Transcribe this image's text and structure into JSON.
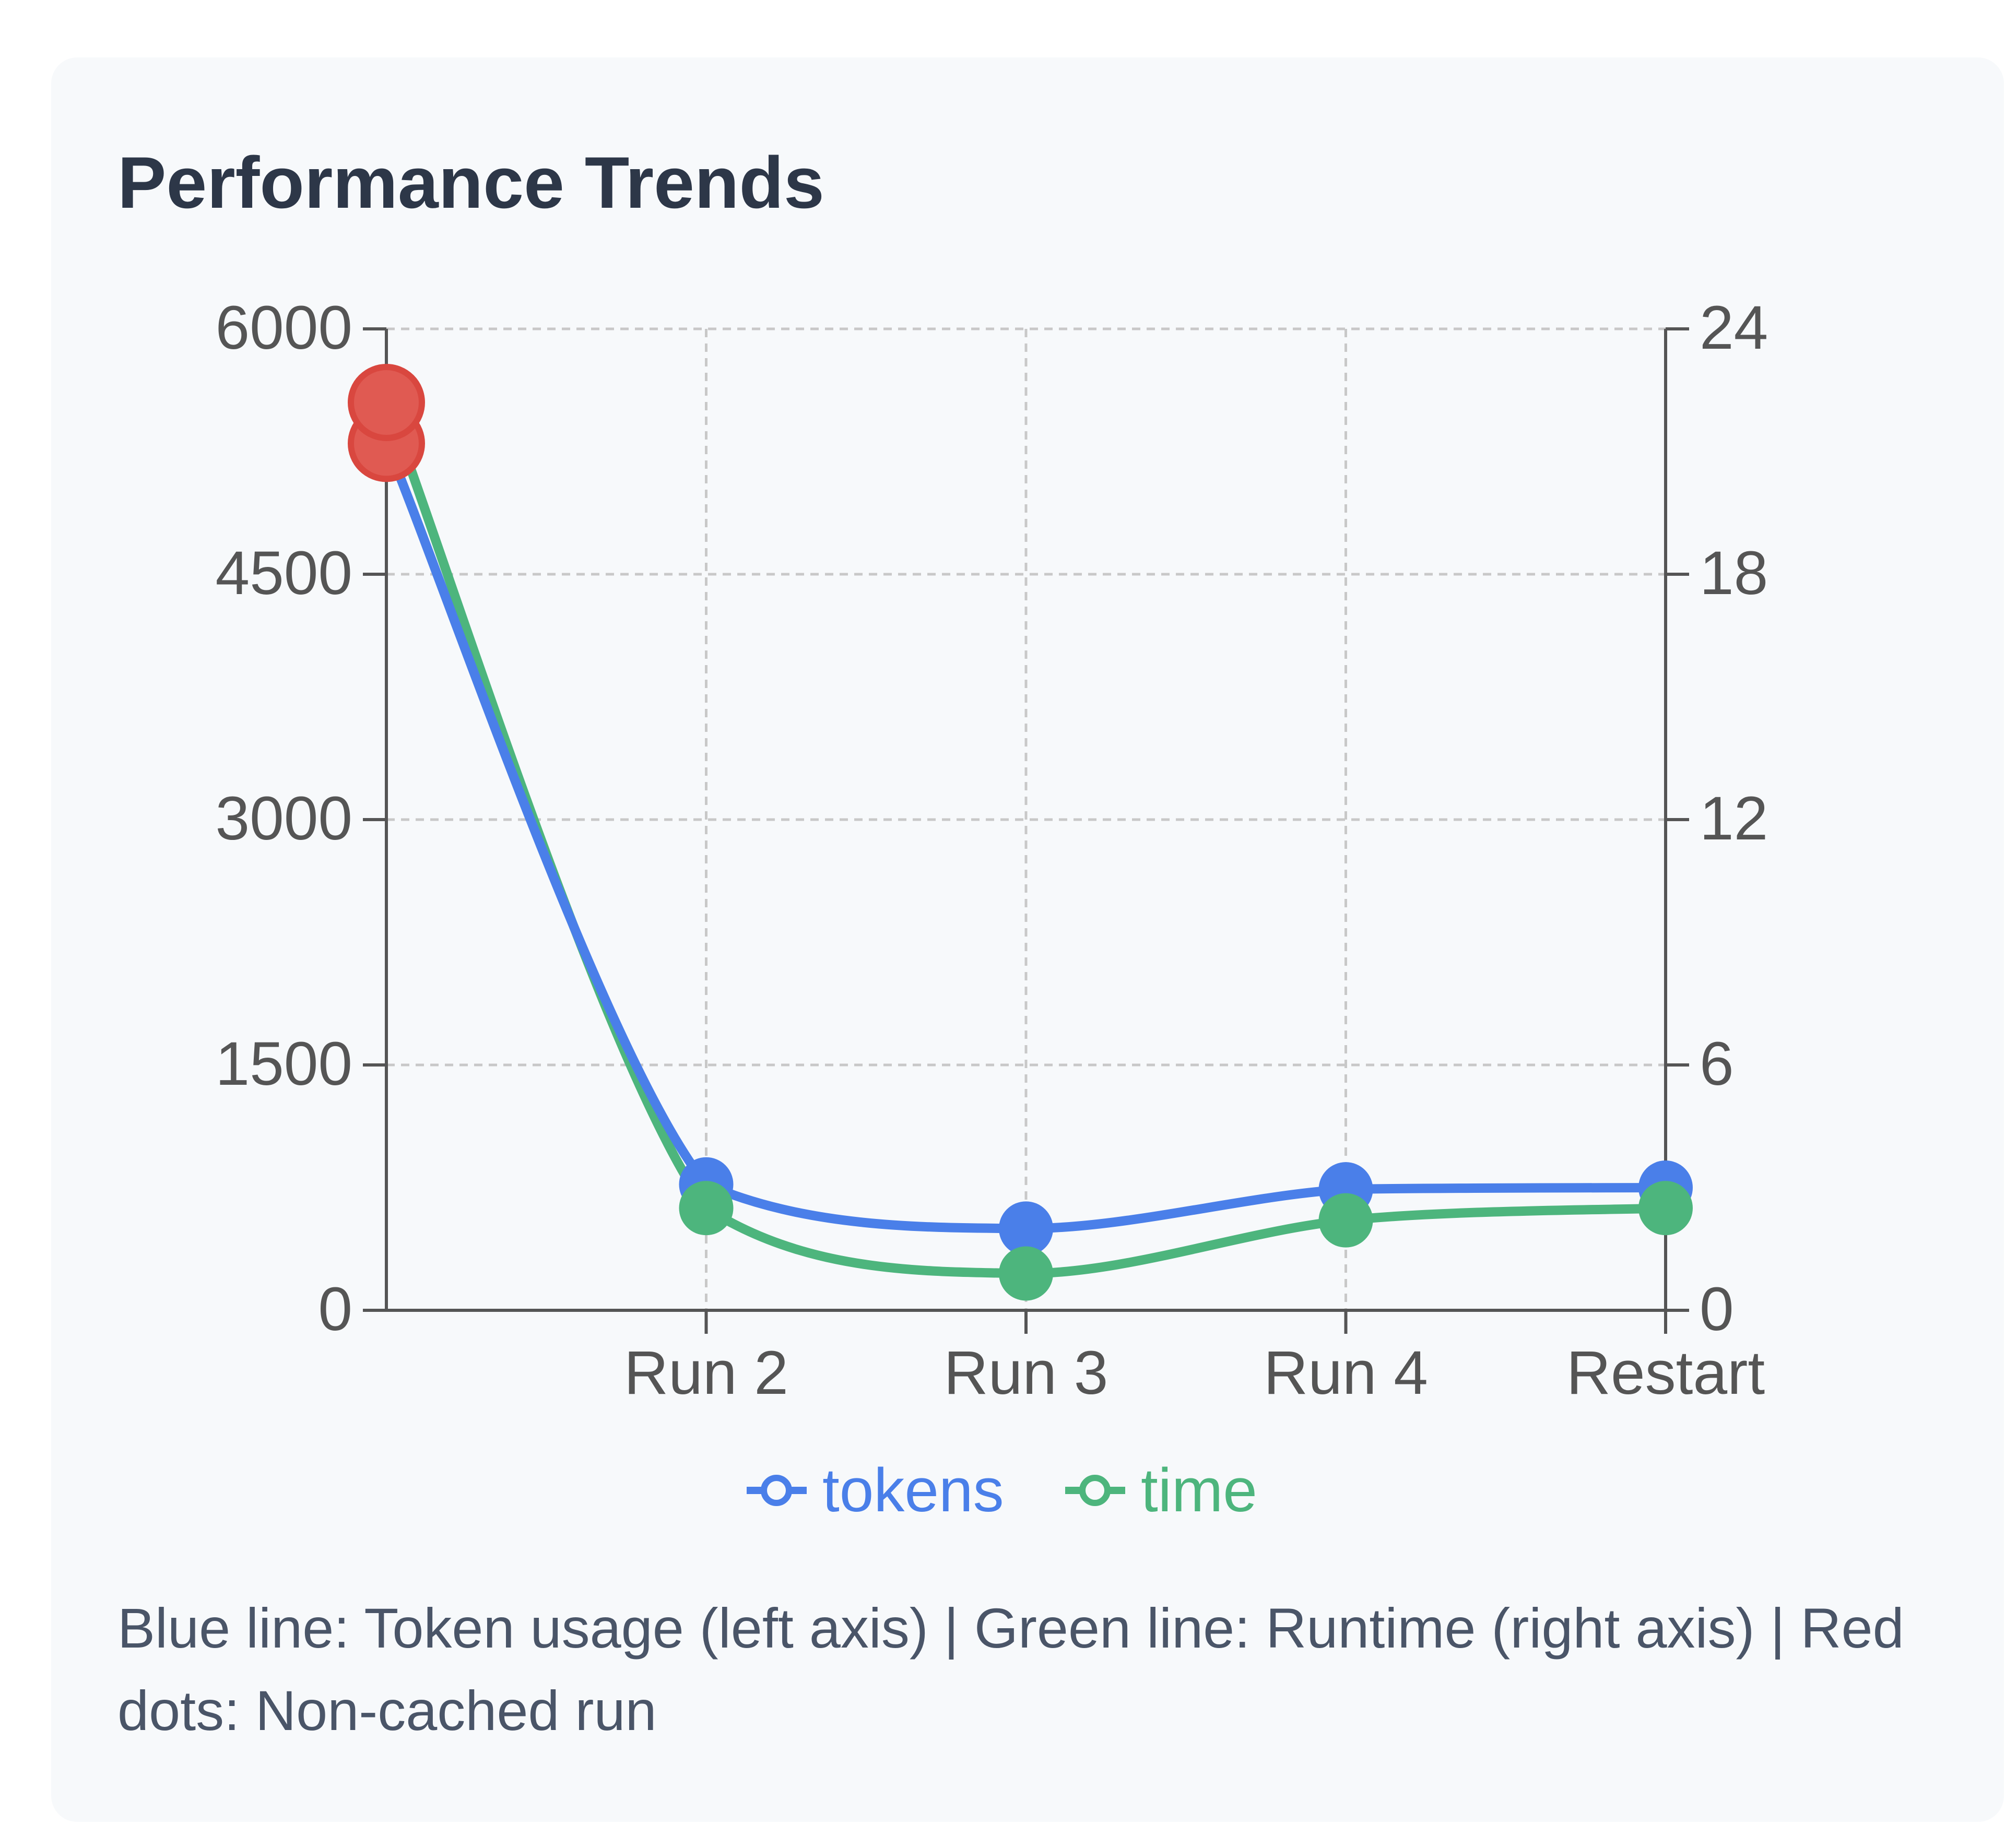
{
  "card": {
    "title": "Performance Trends",
    "caption": "Blue line: Token usage (left axis) | Green line: Runtime (right axis) | Red dots: Non-cached run"
  },
  "colors": {
    "tokens": "#4a7fe9",
    "time": "#4db57d",
    "highlight": "#d9473f",
    "axis": "#555555",
    "grid": "#c8c8c8",
    "tick_text": "#555555"
  },
  "chart_data": {
    "type": "line",
    "categories": [
      "",
      "Run 2",
      "Run 3",
      "Run 4",
      "Restart"
    ],
    "series": [
      {
        "name": "tokens",
        "axis": "left",
        "color": "#4a7fe9",
        "values": [
          5300,
          770,
          500,
          740,
          750
        ]
      },
      {
        "name": "time",
        "axis": "right",
        "color": "#4db57d",
        "values": [
          22.2,
          2.5,
          0.9,
          2.2,
          2.5
        ]
      }
    ],
    "highlight": {
      "label": "Non-cached run",
      "color": "#d9473f",
      "category_index": 0
    },
    "y_left": {
      "ylim": [
        0,
        6000
      ],
      "ticks": [
        0,
        1500,
        3000,
        4500,
        6000
      ]
    },
    "y_right": {
      "ylim": [
        0,
        24
      ],
      "ticks": [
        0,
        6,
        12,
        18,
        24
      ]
    },
    "grid": true,
    "legend_position": "bottom-center",
    "legend": [
      "tokens",
      "time"
    ]
  }
}
